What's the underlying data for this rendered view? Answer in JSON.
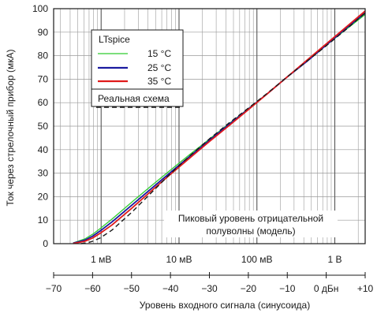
{
  "chart_data": {
    "type": "line",
    "ylabel": "Ток через стрелочный прибор (мкА)",
    "xlabel": "Уровень входного сигнала (синусоида)",
    "xlim": [
      -70,
      10
    ],
    "ylim": [
      0,
      100
    ],
    "x_ticks": [
      -70,
      -60,
      -50,
      -40,
      -30,
      -20,
      -10,
      0,
      10
    ],
    "x_tick_labels": [
      "−70",
      "−60",
      "−50",
      "−40",
      "−30",
      "−20",
      "−10",
      "0 дБн",
      "+10"
    ],
    "y_ticks": [
      0,
      10,
      20,
      30,
      40,
      50,
      60,
      70,
      80,
      90,
      100
    ],
    "y_tick_labels": [
      "0",
      "10",
      "20",
      "30",
      "40",
      "50",
      "60",
      "70",
      "80",
      "90",
      "100"
    ],
    "volt_scale": {
      "labels": [
        "1 мВ",
        "10 мВ",
        "100 мВ",
        "1 В"
      ],
      "dB": [
        -57.8,
        -37.8,
        -17.8,
        2.2
      ]
    },
    "grid": true,
    "legend": {
      "title": "LTspice",
      "items": [
        "15 °C",
        "25 °C",
        "35 °C"
      ],
      "separator_label": "Реальная схема",
      "placement": "top-left"
    },
    "annotation": {
      "line1": "Пиковый уровень отрицательной",
      "line2": "полуволны (модель)"
    },
    "colors": {
      "15c": "#2ecc2e",
      "25c": "#1a1aa0",
      "35c": "#e01a1a",
      "real": "#1a1a1a",
      "grid": "#9a9a9a",
      "axis": "#1a1a1a"
    },
    "series": [
      {
        "name": "15 °C",
        "x": [
          -65,
          -62,
          -60,
          -58,
          -55,
          -50,
          -45,
          -40,
          -35,
          -30,
          -25,
          -20,
          -15,
          -10,
          -5,
          0,
          5,
          10
        ],
        "values": [
          0.3,
          2.0,
          4.0,
          6.5,
          10.5,
          17.6,
          24.5,
          31.3,
          38.0,
          44.5,
          51.0,
          57.5,
          64.0,
          71.0,
          77.5,
          84.5,
          91.0,
          97.5
        ]
      },
      {
        "name": "25 °C",
        "x": [
          -65,
          -62,
          -60,
          -58,
          -55,
          -50,
          -45,
          -40,
          -35,
          -30,
          -25,
          -20,
          -15,
          -10,
          -5,
          0,
          5,
          10
        ],
        "values": [
          0.2,
          1.5,
          3.2,
          5.5,
          9.3,
          16.3,
          23.3,
          30.3,
          37.2,
          44.0,
          50.7,
          57.3,
          64.0,
          71.0,
          77.5,
          84.5,
          91.5,
          98.2
        ]
      },
      {
        "name": "35 °C",
        "x": [
          -65,
          -62,
          -60,
          -58,
          -55,
          -50,
          -45,
          -40,
          -35,
          -30,
          -25,
          -20,
          -15,
          -10,
          -5,
          0,
          5,
          10
        ],
        "values": [
          0.1,
          1.0,
          2.4,
          4.5,
          8.0,
          15.0,
          22.3,
          29.5,
          36.5,
          43.5,
          50.2,
          57.0,
          64.0,
          71.0,
          78.0,
          85.0,
          92.0,
          99.0
        ]
      },
      {
        "name": "Реальная схема",
        "dashed": true,
        "x": [
          -63,
          -61,
          -60,
          -58,
          -55,
          -50,
          -45,
          -40,
          -35,
          -30,
          -25,
          -20,
          -15,
          -10,
          -5,
          0,
          5,
          10
        ],
        "values": [
          0.0,
          0.5,
          1.0,
          2.5,
          5.8,
          13.3,
          21.5,
          29.8,
          37.4,
          44.6,
          51.3,
          57.7,
          64.2,
          71.0,
          77.6,
          84.2,
          91.0,
          98.2
        ]
      }
    ]
  }
}
